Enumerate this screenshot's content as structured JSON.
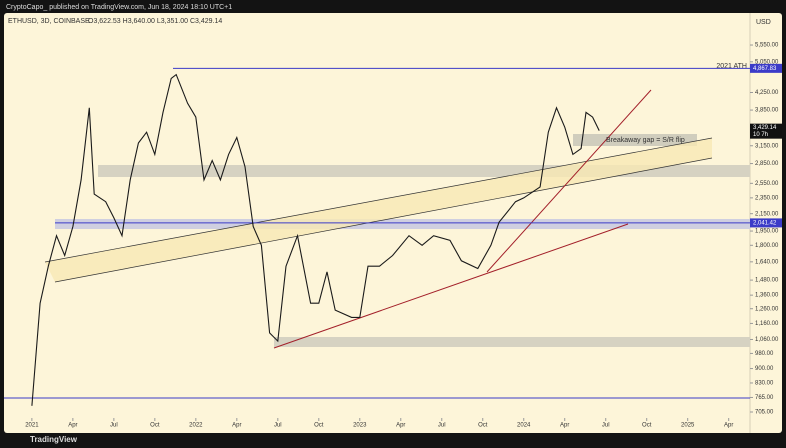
{
  "header": "CryptoCapo_ published on TradingView.com, Jun 18, 2024 18:10 UTC+1",
  "footer": "TradingView",
  "chart_data": {
    "type": "line",
    "title": "ETHUSD, 3D, COINBASE",
    "ohlc": "O3,622.53 H3,640.00 L3,351.00 C3,429.14",
    "currency": "USD",
    "log_scale": true,
    "color": "#1a1a1a",
    "ylim": [
      630,
      6645
    ],
    "xlim": [
      2020.83,
      2025.38
    ],
    "yticks": [
      {
        "value": 5550,
        "label": "5,550.00"
      },
      {
        "value": 5050,
        "label": "5,050.00"
      },
      {
        "value": 4250,
        "label": "4,250.00"
      },
      {
        "value": 3850,
        "label": "3,850.00"
      },
      {
        "value": 3150,
        "label": "3,150.00"
      },
      {
        "value": 2850,
        "label": "2,850.00"
      },
      {
        "value": 2550,
        "label": "2,550.00"
      },
      {
        "value": 2350,
        "label": "2,350.00"
      },
      {
        "value": 2150,
        "label": "2,150.00"
      },
      {
        "value": 1950,
        "label": "1,950.00"
      },
      {
        "value": 1800,
        "label": "1,800.00"
      },
      {
        "value": 1640,
        "label": "1,640.00"
      },
      {
        "value": 1480,
        "label": "1,480.00"
      },
      {
        "value": 1360,
        "label": "1,360.00"
      },
      {
        "value": 1260,
        "label": "1,260.00"
      },
      {
        "value": 1160,
        "label": "1,160.00"
      },
      {
        "value": 1060,
        "label": "1,060.00"
      },
      {
        "value": 980,
        "label": "980.00"
      },
      {
        "value": 900,
        "label": "900.00"
      },
      {
        "value": 830,
        "label": "830.00"
      },
      {
        "value": 765,
        "label": "765.00"
      },
      {
        "value": 705,
        "label": "705.00"
      }
    ],
    "xticks": [
      {
        "value": 2021,
        "label": "2021"
      },
      {
        "value": 2021.25,
        "label": "Apr"
      },
      {
        "value": 2021.5,
        "label": "Jul"
      },
      {
        "value": 2021.75,
        "label": "Oct"
      },
      {
        "value": 2022,
        "label": "2022"
      },
      {
        "value": 2022.25,
        "label": "Apr"
      },
      {
        "value": 2022.5,
        "label": "Jul"
      },
      {
        "value": 2022.75,
        "label": "Oct"
      },
      {
        "value": 2023,
        "label": "2023"
      },
      {
        "value": 2023.25,
        "label": "Apr"
      },
      {
        "value": 2023.5,
        "label": "Jul"
      },
      {
        "value": 2023.75,
        "label": "Oct"
      },
      {
        "value": 2024,
        "label": "2024"
      },
      {
        "value": 2024.25,
        "label": "Apr"
      },
      {
        "value": 2024.5,
        "label": "Jul"
      },
      {
        "value": 2024.75,
        "label": "Oct"
      },
      {
        "value": 2025,
        "label": "2025"
      },
      {
        "value": 2025.25,
        "label": "Apr"
      }
    ],
    "levels": [
      {
        "value": 4867.83,
        "label": "4,867.83",
        "color": "#3b3bc8"
      },
      {
        "value": 2041.42,
        "label": "2,041.42",
        "color": "#3b3bc8"
      }
    ],
    "last_price": {
      "value": 3429.14,
      "label": "3,429.14"
    },
    "countdown": "10 7h",
    "annotations": [
      "2021 ATH",
      "Breakaway gap = S/R flip"
    ],
    "x": [
      2021.0,
      2021.05,
      2021.1,
      2021.15,
      2021.2,
      2021.25,
      2021.3,
      2021.35,
      2021.38,
      2021.45,
      2021.5,
      2021.55,
      2021.6,
      2021.65,
      2021.7,
      2021.75,
      2021.8,
      2021.85,
      2021.88,
      2021.95,
      2022.0,
      2022.05,
      2022.1,
      2022.15,
      2022.2,
      2022.25,
      2022.3,
      2022.35,
      2022.4,
      2022.45,
      2022.5,
      2022.55,
      2022.62,
      2022.7,
      2022.75,
      2022.8,
      2022.85,
      2022.95,
      2023.0,
      2023.05,
      2023.12,
      2023.2,
      2023.3,
      2023.38,
      2023.45,
      2023.55,
      2023.62,
      2023.72,
      2023.8,
      2023.85,
      2023.95,
      2024.0,
      2024.1,
      2024.15,
      2024.2,
      2024.25,
      2024.3,
      2024.35,
      2024.38,
      2024.42,
      2024.46
    ],
    "values": [
      730,
      1300,
      1600,
      1900,
      1700,
      2000,
      2600,
      3900,
      2400,
      2300,
      2100,
      1900,
      2600,
      3200,
      3400,
      3000,
      3800,
      4600,
      4700,
      4000,
      3700,
      2600,
      2900,
      2600,
      3000,
      3300,
      2800,
      2000,
      1800,
      1100,
      1050,
      1600,
      1900,
      1300,
      1300,
      1550,
      1250,
      1200,
      1200,
      1600,
      1600,
      1700,
      1900,
      1800,
      1900,
      1850,
      1650,
      1580,
      1800,
      2050,
      2300,
      2350,
      2500,
      3400,
      3900,
      3500,
      3000,
      3100,
      3800,
      3700,
      3430
    ]
  }
}
